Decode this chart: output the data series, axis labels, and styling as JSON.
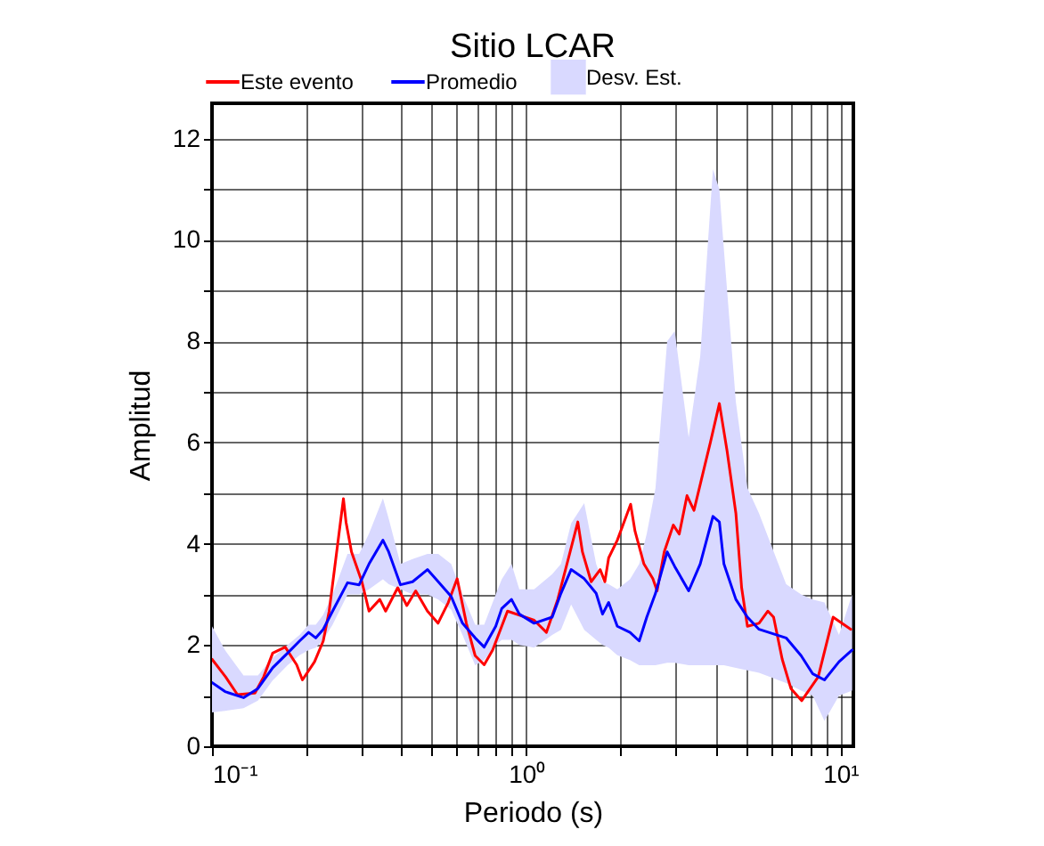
{
  "chart_data": {
    "type": "line",
    "title": "Sitio LCAR",
    "xlabel": "Periodo (s)",
    "ylabel": "Amplitud",
    "log": "x",
    "grid": true,
    "legend": "top",
    "annotations": [
      "Desv. Est."
    ],
    "xlim": [
      0.1,
      11
    ],
    "ylim": [
      0,
      12.7
    ],
    "xticks": [
      {
        "value": 0.1,
        "label": "10⁻¹"
      },
      {
        "value": 0.2,
        "label": null
      },
      {
        "value": 0.3,
        "label": null
      },
      {
        "value": 0.4,
        "label": null
      },
      {
        "value": 0.5,
        "label": null
      },
      {
        "value": 0.6,
        "label": null
      },
      {
        "value": 0.7,
        "label": null
      },
      {
        "value": 0.8,
        "label": null
      },
      {
        "value": 0.9,
        "label": null
      },
      {
        "value": 1,
        "label": "10⁰"
      },
      {
        "value": 2,
        "label": null
      },
      {
        "value": 3,
        "label": null
      },
      {
        "value": 4,
        "label": null
      },
      {
        "value": 5,
        "label": null
      },
      {
        "value": 6,
        "label": null
      },
      {
        "value": 7,
        "label": null
      },
      {
        "value": 8,
        "label": null
      },
      {
        "value": 9,
        "label": null
      },
      {
        "value": 10,
        "label": "10¹"
      }
    ],
    "yticks": [
      0,
      {
        "value": 1,
        "label": null
      },
      2,
      {
        "value": 3,
        "label": null
      },
      4,
      {
        "value": 5,
        "label": null
      },
      6,
      {
        "value": 7,
        "label": null
      },
      8,
      {
        "value": 9,
        "label": null
      },
      10,
      {
        "value": 11,
        "label": null
      },
      12
    ],
    "series": [
      {
        "name": "Este evento",
        "color": "#ff0000",
        "x": [
          0.1,
          0.1105,
          0.1205,
          0.137,
          0.146,
          0.156,
          0.171,
          0.186,
          0.194,
          0.212,
          0.226,
          0.236,
          0.262,
          0.267,
          0.278,
          0.3,
          0.316,
          0.342,
          0.357,
          0.39,
          0.417,
          0.445,
          0.485,
          0.524,
          0.565,
          0.603,
          0.645,
          0.688,
          0.735,
          0.782,
          0.872,
          1.06,
          1.16,
          1.26,
          1.38,
          1.46,
          1.51,
          1.61,
          1.72,
          1.78,
          1.83,
          1.95,
          2.08,
          2.15,
          2.22,
          2.37,
          2.53,
          2.61,
          2.75,
          2.94,
          3.07,
          3.25,
          3.42,
          3.7,
          3.86,
          4.12,
          4.36,
          4.65,
          4.85,
          5.06,
          5.51,
          5.88,
          6.13,
          6.53,
          6.96,
          7.53,
          8.5,
          9.48,
          10.8
        ],
        "values": [
          1.72,
          1.37,
          1.02,
          1.05,
          1.37,
          1.84,
          1.96,
          1.61,
          1.31,
          1.67,
          2.08,
          2.67,
          4.89,
          4.43,
          3.84,
          3.25,
          2.67,
          2.9,
          2.67,
          3.13,
          2.78,
          3.07,
          2.67,
          2.43,
          2.84,
          3.31,
          2.43,
          1.79,
          1.61,
          1.9,
          2.67,
          2.49,
          2.25,
          2.9,
          3.84,
          4.43,
          3.84,
          3.25,
          3.49,
          3.25,
          3.72,
          4.07,
          4.54,
          4.78,
          4.25,
          3.6,
          3.31,
          3.07,
          3.84,
          4.37,
          4.19,
          4.95,
          4.66,
          5.54,
          6.01,
          6.77,
          5.83,
          4.6,
          3.13,
          2.37,
          2.43,
          2.67,
          2.55,
          1.72,
          1.14,
          0.9,
          1.37,
          2.55,
          2.31
        ]
      },
      {
        "name": "Promedio",
        "color": "#0000ff",
        "x": [
          0.1,
          0.11,
          0.126,
          0.14,
          0.156,
          0.174,
          0.19,
          0.203,
          0.214,
          0.226,
          0.242,
          0.27,
          0.294,
          0.316,
          0.35,
          0.365,
          0.398,
          0.435,
          0.485,
          0.525,
          0.577,
          0.627,
          0.688,
          0.735,
          0.8,
          0.836,
          0.898,
          0.951,
          1.06,
          1.21,
          1.29,
          1.39,
          1.53,
          1.67,
          1.75,
          1.83,
          1.95,
          2.14,
          2.29,
          2.42,
          2.58,
          2.81,
          2.97,
          3.29,
          3.58,
          3.93,
          4.12,
          4.26,
          4.65,
          5.06,
          5.51,
          6.72,
          7.5,
          8.17,
          8.9,
          9.9,
          10.9
        ],
        "values": [
          1.26,
          1.08,
          0.96,
          1.14,
          1.55,
          1.84,
          2.08,
          2.25,
          2.14,
          2.31,
          2.67,
          3.23,
          3.19,
          3.6,
          4.07,
          3.84,
          3.19,
          3.25,
          3.49,
          3.25,
          2.96,
          2.43,
          2.14,
          1.96,
          2.37,
          2.72,
          2.9,
          2.61,
          2.43,
          2.55,
          3.02,
          3.49,
          3.31,
          3.02,
          2.61,
          2.84,
          2.37,
          2.25,
          2.08,
          2.55,
          3.02,
          3.84,
          3.55,
          3.07,
          3.6,
          4.54,
          4.43,
          3.6,
          2.9,
          2.55,
          2.31,
          2.14,
          1.79,
          1.43,
          1.31,
          1.67,
          1.9
        ],
        "lower": [
          0.67,
          0.7,
          0.75,
          0.9,
          1.3,
          1.6,
          1.8,
          1.9,
          1.95,
          2.1,
          2.4,
          3.0,
          3.0,
          3.1,
          3.3,
          3.2,
          3.1,
          3.0,
          3.0,
          2.9,
          2.7,
          2.2,
          1.6,
          1.7,
          2.0,
          2.1,
          2.1,
          2.0,
          1.95,
          2.2,
          2.3,
          2.8,
          2.3,
          2.1,
          2.0,
          1.95,
          1.8,
          1.7,
          1.6,
          1.6,
          1.6,
          1.65,
          1.65,
          1.6,
          1.6,
          1.6,
          1.6,
          1.6,
          1.55,
          1.5,
          1.45,
          1.25,
          1.1,
          1.0,
          0.5,
          1.0,
          1.1
        ],
        "upper": [
          2.37,
          1.9,
          1.4,
          1.4,
          1.75,
          2.0,
          2.2,
          2.4,
          2.4,
          2.6,
          3.0,
          3.8,
          3.8,
          4.2,
          4.9,
          4.5,
          3.6,
          3.7,
          3.8,
          3.8,
          3.6,
          3.0,
          2.4,
          2.4,
          3.0,
          3.3,
          3.6,
          3.1,
          3.1,
          3.4,
          3.6,
          4.4,
          4.8,
          3.6,
          3.25,
          3.2,
          3.1,
          3.3,
          3.6,
          4.2,
          5.1,
          8.0,
          8.2,
          6.1,
          7.7,
          11.4,
          11.0,
          9.8,
          6.8,
          5.1,
          4.6,
          3.2,
          3.0,
          2.9,
          2.84,
          2.2,
          3.0
        ]
      }
    ]
  }
}
